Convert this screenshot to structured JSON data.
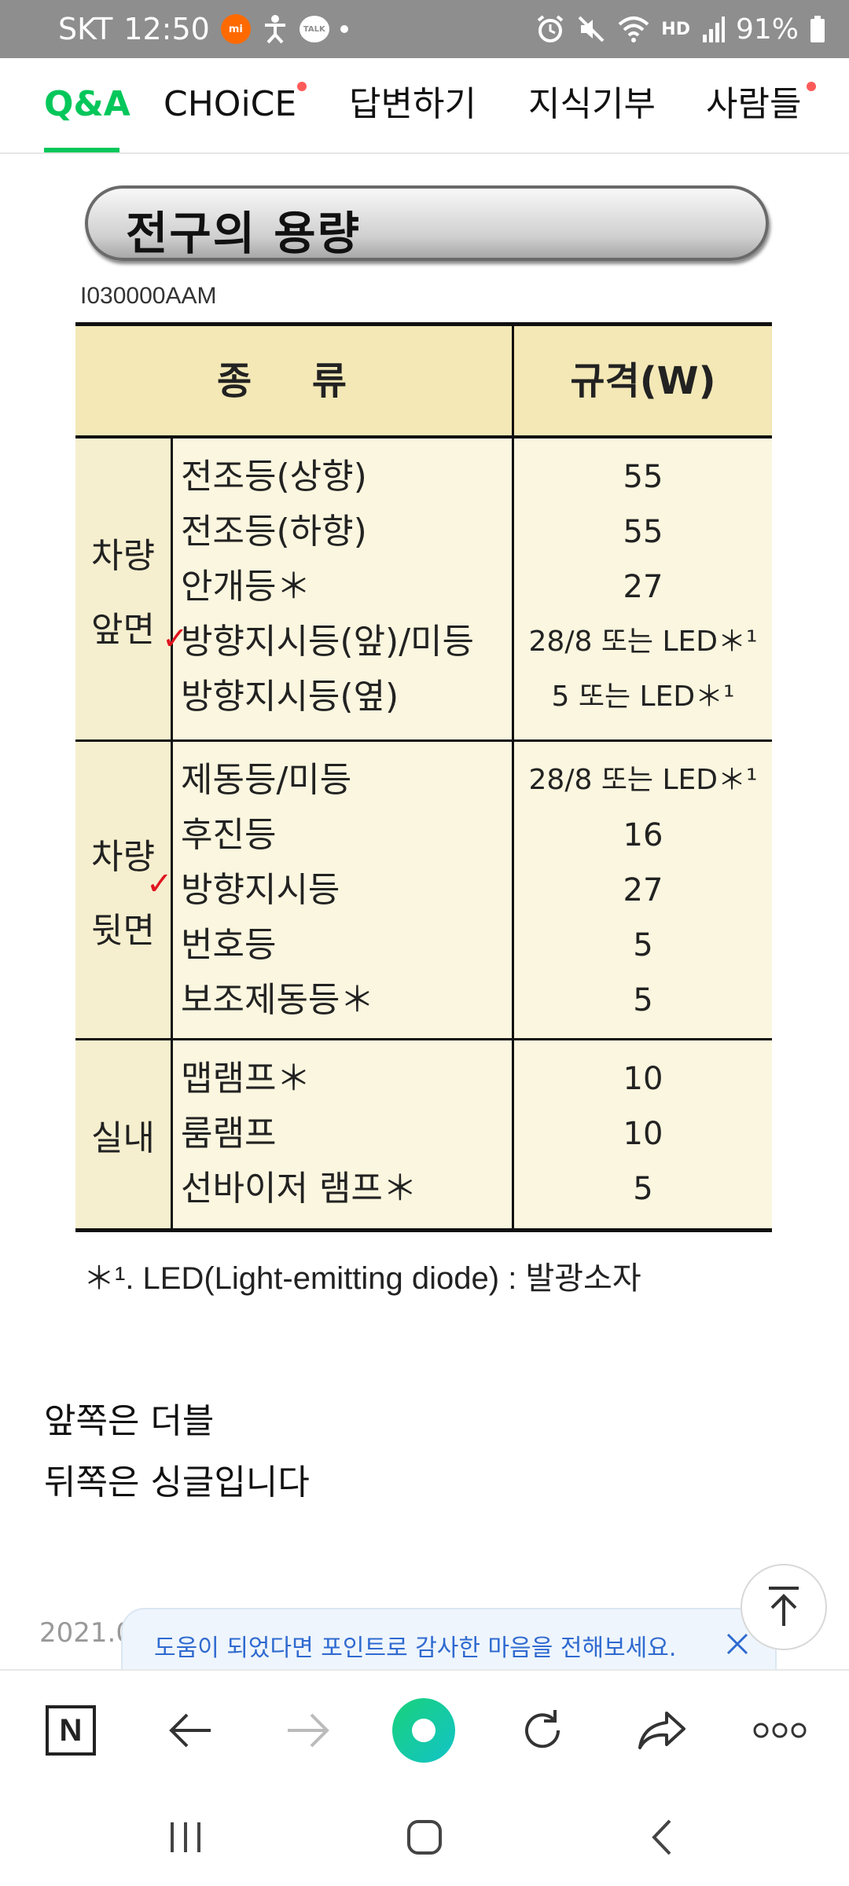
{
  "status_bar": {
    "carrier": "SKT",
    "time": "12:50",
    "mi_badge": "mi",
    "talk_badge": "TALK",
    "network_badge": "HD",
    "battery": "91%"
  },
  "tabs": [
    {
      "label": "Q&A",
      "active": true,
      "new": false
    },
    {
      "label": "CHOiCE",
      "active": false,
      "new": true
    },
    {
      "label": "답변하기",
      "active": false,
      "new": false
    },
    {
      "label": "지식기부",
      "active": false,
      "new": false
    },
    {
      "label": "사람들",
      "active": false,
      "new": true
    }
  ],
  "manual": {
    "title": "전구의 용량",
    "code": "I030000AAM",
    "header_kind": "종 류",
    "header_spec": "규격(W)",
    "groups": [
      {
        "label_line1": "차량",
        "label_line2": "앞면",
        "rows": [
          {
            "item": "전조등(상향)",
            "spec": "55"
          },
          {
            "item": "전조등(하향)",
            "spec": "55"
          },
          {
            "item": "안개등＊",
            "spec": "27"
          },
          {
            "item": "방향지시등(앞)/미등",
            "spec": "28/8 또는 LED＊¹"
          },
          {
            "item": "방향지시등(옆)",
            "spec": "5 또는 LED＊¹"
          }
        ]
      },
      {
        "label_line1": "차량",
        "label_line2": "뒷면",
        "rows": [
          {
            "item": "제동등/미등",
            "spec": "28/8 또는 LED＊¹"
          },
          {
            "item": "후진등",
            "spec": "16"
          },
          {
            "item": "방향지시등",
            "spec": "27"
          },
          {
            "item": "번호등",
            "spec": "5"
          },
          {
            "item": "보조제동등＊",
            "spec": "5"
          }
        ]
      },
      {
        "label_line1": "실내",
        "label_line2": "",
        "rows": [
          {
            "item": "맵램프＊",
            "spec": "10"
          },
          {
            "item": "룸램프",
            "spec": "10"
          },
          {
            "item": "선바이저 램프＊",
            "spec": "5"
          }
        ]
      }
    ],
    "footnote": "＊¹. LED(Light-emitting diode) : 발광소자"
  },
  "answer": {
    "line1": "앞쪽은 더블",
    "line2": "뒤쪽은 싱글입니다"
  },
  "date_partial": "2021.0",
  "toast": {
    "text": "도움이 되었다면 포인트로 감사한 마음을 전해보세요."
  },
  "bottom_bar": {
    "naver_logo": "N",
    "icons": [
      "naver-home-icon",
      "back-arrow-icon",
      "forward-arrow-icon",
      "green-dot-icon",
      "refresh-icon",
      "share-icon",
      "more-icon"
    ]
  },
  "colors": {
    "accent": "#03c75a",
    "status_bar": "#8e8e8e",
    "toast_text": "#2f6ad0",
    "header_bg": "#f3e8b6",
    "check_mark": "#e0141e"
  }
}
